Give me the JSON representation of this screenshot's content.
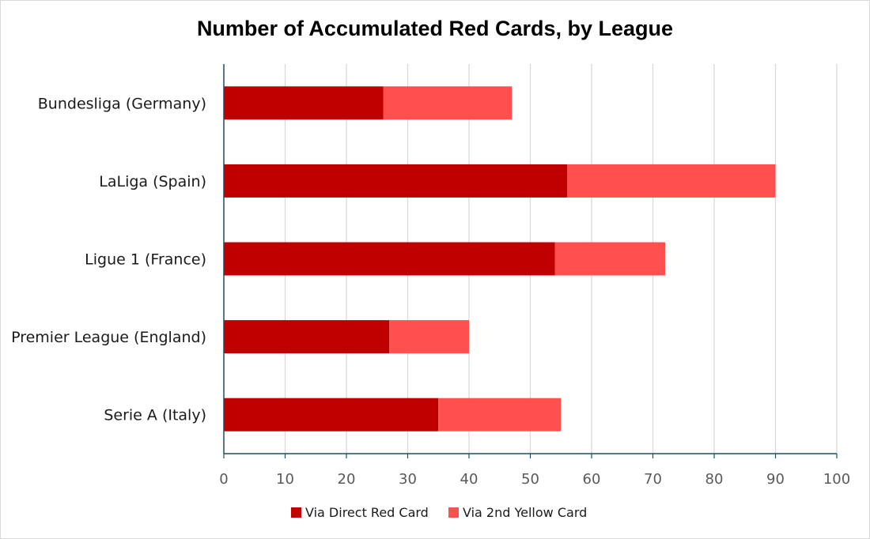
{
  "chart_data": {
    "type": "bar",
    "orientation": "horizontal",
    "stacked": true,
    "title": "Number of Accumulated Red Cards, by League",
    "xlabel": "",
    "ylabel": "",
    "categories": [
      "Bundesliga (Germany)",
      "LaLiga (Spain)",
      "Ligue 1 (France)",
      "Premier League (England)",
      "Serie A (Italy)"
    ],
    "series": [
      {
        "name": "Via Direct Red Card",
        "color": "#c00000",
        "values": [
          26,
          56,
          54,
          27,
          35
        ]
      },
      {
        "name": "Via 2nd Yellow Card",
        "color": "#ff5050",
        "values": [
          21,
          34,
          18,
          13,
          20
        ]
      }
    ],
    "xlim": [
      0,
      100
    ],
    "xticks": [
      0,
      10,
      20,
      30,
      40,
      50,
      60,
      70,
      80,
      90,
      100
    ],
    "grid": true,
    "legend_position": "bottom"
  }
}
